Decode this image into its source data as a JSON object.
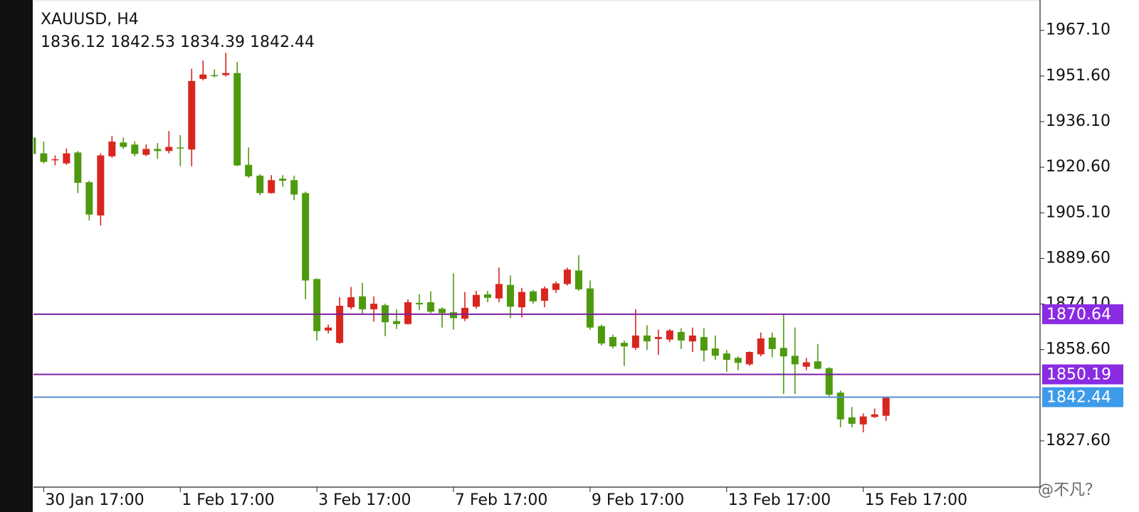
{
  "chart_data": {
    "type": "candlestick",
    "title": "XAUUSD, H4",
    "categories": [
      null,
      "30 Jan 17:00",
      null,
      null,
      null,
      null,
      null,
      null,
      null,
      null,
      null,
      null,
      null,
      "1 Feb 17:00",
      null,
      null,
      null,
      null,
      null,
      null,
      null,
      null,
      null,
      null,
      null,
      "3 Feb 17:00",
      null,
      null,
      null,
      null,
      null,
      null,
      null,
      null,
      null,
      null,
      null,
      "7 Feb 17:00",
      null,
      null,
      null,
      null,
      null,
      null,
      null,
      null,
      null,
      null,
      null,
      "9 Feb 17:00",
      null,
      null,
      null,
      null,
      null,
      null,
      null,
      null,
      null,
      null,
      null,
      "13 Feb 17:00",
      null,
      null,
      null,
      null,
      null,
      null,
      null,
      null,
      null,
      null,
      null,
      "15 Feb 17:00",
      null,
      null
    ],
    "open": [
      1930.7,
      1925.3,
      1923.0,
      1921.9,
      1925.6,
      1915.5,
      1904.2,
      1924.3,
      1929.0,
      1928.3,
      1924.8,
      1926.8,
      1926.1,
      1927.3,
      1926.6,
      1950.6,
      1951.9,
      1951.9,
      1952.6,
      1921.4,
      1917.7,
      1911.8,
      1916.7,
      1916.2,
      1911.8,
      1882.6,
      1865.1,
      1860.9,
      1873.0,
      1876.7,
      1872.3,
      1873.7,
      1868.3,
      1867.3,
      1874.5,
      1874.7,
      1872.5,
      1871.3,
      1869.1,
      1873.2,
      1877.4,
      1876.0,
      1880.6,
      1873.0,
      1878.4,
      1875.2,
      1878.9,
      1880.9,
      1885.5,
      1879.4,
      1866.6,
      1862.9,
      1860.9,
      1859.2,
      1863.4,
      1862.2,
      1862.0,
      1864.6,
      1861.4,
      1862.9,
      1859.0,
      1857.3,
      1855.8,
      1853.6,
      1857.0,
      1862.7,
      1859.2,
      1856.5,
      1852.8,
      1854.6,
      1852.3,
      1844.0,
      1835.6,
      1833.2,
      1835.7,
      1836.12
    ],
    "high": [
      1932.0,
      1929.3,
      1924.6,
      1927.0,
      1926.1,
      1916.0,
      1925.3,
      1931.2,
      1930.7,
      1929.3,
      1928.3,
      1928.8,
      1932.9,
      1931.5,
      1954.1,
      1956.8,
      1953.8,
      1959.5,
      1956.3,
      1927.3,
      1918.2,
      1917.9,
      1917.9,
      1917.7,
      1912.3,
      1882.8,
      1867.1,
      1876.4,
      1879.9,
      1881.3,
      1876.7,
      1874.2,
      1872.3,
      1875.7,
      1877.4,
      1878.4,
      1873.0,
      1884.5,
      1878.2,
      1878.6,
      1878.6,
      1886.5,
      1883.8,
      1879.6,
      1878.9,
      1880.1,
      1881.8,
      1886.5,
      1890.7,
      1882.1,
      1867.1,
      1863.7,
      1861.7,
      1872.3,
      1866.9,
      1865.4,
      1865.6,
      1865.9,
      1866.1,
      1865.9,
      1863.4,
      1858.5,
      1856.3,
      1858.0,
      1864.4,
      1864.4,
      1870.8,
      1866.1,
      1855.8,
      1860.5,
      1852.6,
      1844.7,
      1839.1,
      1836.9,
      1838.6,
      1842.53
    ],
    "low": [
      1924.6,
      1921.9,
      1921.2,
      1921.4,
      1911.8,
      1902.5,
      1900.8,
      1923.8,
      1926.8,
      1924.3,
      1924.3,
      1923.4,
      1925.3,
      1920.9,
      1920.9,
      1950.1,
      1951.1,
      1951.4,
      1921.0,
      1917.0,
      1911.1,
      1911.6,
      1914.0,
      1909.4,
      1875.7,
      1861.7,
      1864.1,
      1860.5,
      1872.3,
      1870.8,
      1868.1,
      1863.2,
      1865.6,
      1867.1,
      1872.0,
      1871.0,
      1866.1,
      1865.4,
      1868.3,
      1872.5,
      1874.7,
      1874.7,
      1869.3,
      1869.5,
      1874.2,
      1873.0,
      1877.9,
      1880.4,
      1878.6,
      1865.4,
      1860.0,
      1859.0,
      1853.1,
      1858.5,
      1858.5,
      1856.8,
      1861.2,
      1858.8,
      1857.8,
      1854.6,
      1855.1,
      1851.1,
      1851.6,
      1853.1,
      1856.3,
      1856.0,
      1843.5,
      1843.5,
      1851.6,
      1851.9,
      1842.3,
      1832.2,
      1832.2,
      1830.5,
      1835.4,
      1834.39
    ],
    "close": [
      1925.1,
      1922.4,
      1923.3,
      1925.3,
      1915.3,
      1904.5,
      1924.6,
      1929.3,
      1927.5,
      1925.1,
      1926.8,
      1926.1,
      1927.5,
      1927.0,
      1949.9,
      1952.1,
      1951.7,
      1952.6,
      1921.2,
      1917.5,
      1911.8,
      1916.2,
      1916.0,
      1911.3,
      1882.1,
      1864.9,
      1866.1,
      1873.5,
      1876.4,
      1872.3,
      1874.2,
      1867.9,
      1867.3,
      1874.7,
      1874.0,
      1871.5,
      1871.0,
      1869.3,
      1872.8,
      1877.2,
      1876.2,
      1880.9,
      1873.2,
      1878.2,
      1875.0,
      1879.4,
      1881.1,
      1885.8,
      1879.1,
      1866.1,
      1860.7,
      1859.7,
      1859.7,
      1863.4,
      1861.4,
      1862.9,
      1865.1,
      1861.7,
      1863.4,
      1858.3,
      1856.5,
      1855.1,
      1854.1,
      1857.8,
      1862.4,
      1858.8,
      1856.3,
      1853.6,
      1854.3,
      1852.1,
      1843.3,
      1834.9,
      1833.4,
      1835.9,
      1836.6,
      1842.44
    ],
    "up_color": "#d8261e",
    "down_color": "#4e9a0e",
    "ylim": [
      1811.88,
      1977.42
    ],
    "yticks": [
      {
        "value": 1967.1,
        "label": "1967.10"
      },
      {
        "value": 1951.6,
        "label": "1951.60"
      },
      {
        "value": 1936.1,
        "label": "1936.10"
      },
      {
        "value": 1920.6,
        "label": "1920.60"
      },
      {
        "value": 1905.1,
        "label": "1905.10"
      },
      {
        "value": 1889.6,
        "label": "1889.60"
      },
      {
        "value": 1874.1,
        "label": "1874.10"
      },
      {
        "value": 1858.6,
        "label": "1858.60"
      },
      {
        "value": 1827.6,
        "label": "1827.60"
      }
    ],
    "lines": [
      {
        "value": 1870.64,
        "color": "#7b1fa2",
        "label_color": "#8a2be2"
      },
      {
        "value": 1850.19,
        "color": "#7b1fa2",
        "label_color": "#8a2be2"
      },
      {
        "value": 1842.44,
        "color": "#5b8ed6",
        "label_color": "#3d9be9"
      }
    ],
    "watermark": "@不凡？"
  }
}
